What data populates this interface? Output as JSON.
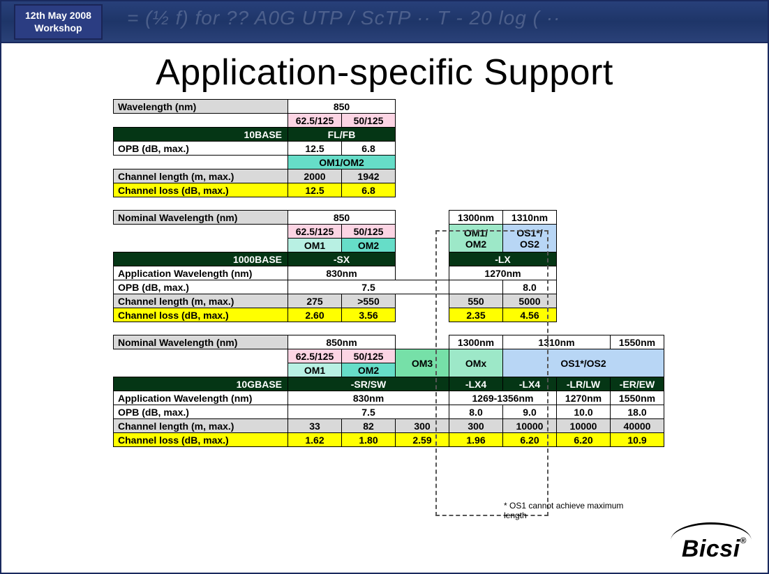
{
  "header": {
    "date_line1": "12th May 2008",
    "date_line2": "Workshop",
    "scribble": "= (½ f) for ??  A0G  UTP / ScTP            ·· T            - 20 log ( ··"
  },
  "title": "Application-specific Support",
  "footnote": "* OS1 cannot achieve maximum length",
  "colors": {
    "grey": "#d9d9d9",
    "yellow": "#ffff00",
    "pink": "#fcd5e4",
    "teal": "#66ddc8",
    "tealLt": "#b8f0e3",
    "mint": "#9de8c8",
    "green2": "#76e0a8",
    "blueLt": "#b8d6f5",
    "dark": "#053615"
  },
  "t10": {
    "r_wave": {
      "label": "Wavelength (nm)",
      "val": "850"
    },
    "r_fiber": {
      "a": "62.5/125",
      "b": "50/125"
    },
    "r_base": {
      "label": "10BASE",
      "val": "FL/FB"
    },
    "r_opb": {
      "label": "OPB (dB, max.)",
      "a": "12.5",
      "b": "6.8"
    },
    "r_om": {
      "val": "OM1/OM2"
    },
    "r_len": {
      "label": "Channel length (m, max.)",
      "a": "2000",
      "b": "1942"
    },
    "r_loss": {
      "label": "Channel loss (dB, max.)",
      "a": "12.5",
      "b": "6.8"
    }
  },
  "t1000": {
    "r_nom": {
      "label": "Nominal Wavelength (nm)",
      "a": "850",
      "c": "1300nm",
      "d": "1310nm"
    },
    "r_fiber": {
      "a": "62.5/125",
      "b": "50/125",
      "c": "OM1/",
      "d": "OS1*/"
    },
    "r_om": {
      "a": "OM1",
      "b": "OM2",
      "c": "OM2",
      "d": "OS2"
    },
    "r_base": {
      "label": "1000BASE",
      "a": "-SX",
      "c": "-LX"
    },
    "r_app": {
      "label": "Application Wavelength (nm)",
      "a": "830nm",
      "c": "1270nm"
    },
    "r_opb": {
      "label": "OPB (dB, max.)",
      "a": "7.5",
      "d": "8.0"
    },
    "r_len": {
      "label": "Channel length (m, max.)",
      "a": "275",
      "b": ">550",
      "c": "550",
      "d": "5000"
    },
    "r_loss": {
      "label": "Channel loss (dB, max.)",
      "a": "2.60",
      "b": "3.56",
      "c": "2.35",
      "d": "4.56"
    }
  },
  "t10g": {
    "r_nom": {
      "label": "Nominal Wavelength (nm)",
      "a": "850nm",
      "d": "1300nm",
      "ef": "1310nm",
      "g": "1550nm"
    },
    "r_fiber": {
      "a": "62.5/125",
      "b": "50/125",
      "c": "OM3",
      "d": "OMx",
      "efg": "OS1*/OS2"
    },
    "r_om": {
      "a": "OM1",
      "b": "OM2"
    },
    "r_base": {
      "label": "10GBASE",
      "abc": "-SR/SW",
      "d": "-LX4",
      "e": "-LX4",
      "f": "-LR/LW",
      "g": "-ER/EW"
    },
    "r_app": {
      "label": "Application Wavelength (nm)",
      "abc": "830nm",
      "de": "1269-1356nm",
      "f": "1270nm",
      "g": "1550nm"
    },
    "r_opb": {
      "label": "OPB (dB, max.)",
      "abc": "7.5",
      "d": "8.0",
      "e": "9.0",
      "f": "10.0",
      "g": "18.0"
    },
    "r_len": {
      "label": "Channel length (m, max.)",
      "a": "33",
      "b": "82",
      "c": "300",
      "d": "300",
      "e": "10000",
      "f": "10000",
      "g": "40000"
    },
    "r_loss": {
      "label": "Channel loss (dB, max.)",
      "a": "1.62",
      "b": "1.80",
      "c": "2.59",
      "d": "1.96",
      "e": "6.20",
      "f": "6.20",
      "g": "10.9"
    }
  },
  "logo": "Bicsi"
}
